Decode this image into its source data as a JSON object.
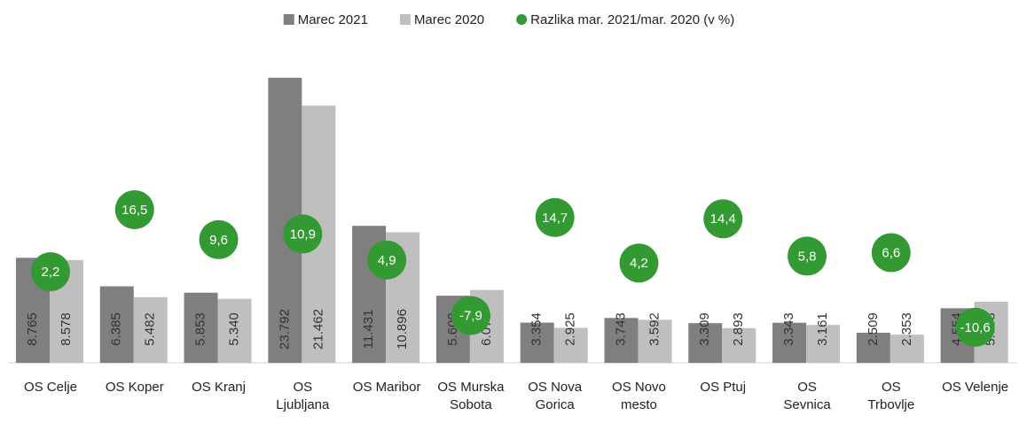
{
  "chart_data": {
    "type": "bar",
    "categories": [
      "OS Celje",
      "OS Koper",
      "OS Kranj",
      "OS\nLjubljana",
      "OS Maribor",
      "OS Murska\nSobota",
      "OS Nova\nGorica",
      "OS Novo\nmesto",
      "OS Ptuj",
      "OS\nSevnica",
      "OS\nTrbovlje",
      "OS Velenje"
    ],
    "series": [
      {
        "name": "Marec 2021",
        "color": "#7f7f7f",
        "values": [
          8765,
          6385,
          5853,
          23792,
          11431,
          5600,
          3354,
          3743,
          3309,
          3343,
          2509,
          4554
        ],
        "value_labels": [
          "8.765",
          "6.385",
          "5.853",
          "23.792",
          "11.431",
          "5.600",
          "3.354",
          "3.743",
          "3.309",
          "3.343",
          "2.509",
          "4.554"
        ]
      },
      {
        "name": "Marec 2020",
        "color": "#bfbfbf",
        "values": [
          8578,
          5482,
          5340,
          21462,
          10896,
          6078,
          2925,
          3592,
          2893,
          3161,
          2353,
          5093
        ],
        "value_labels": [
          "8.578",
          "5.482",
          "5.340",
          "21.462",
          "10.896",
          "6.078",
          "2.925",
          "3.592",
          "2.893",
          "3.161",
          "2.353",
          "5.093"
        ]
      },
      {
        "name": "Razlika mar. 2021/mar. 2020 (v %)",
        "color": "#339933",
        "axis": "y2",
        "values": [
          2.2,
          16.5,
          9.6,
          10.9,
          4.9,
          -7.9,
          14.7,
          4.2,
          14.4,
          5.8,
          6.6,
          -10.6
        ],
        "value_labels": [
          "2,2",
          "16,5",
          "9,6",
          "10,9",
          "4,9",
          "-7,9",
          "14,7",
          "4,2",
          "14,4",
          "5,8",
          "6,6",
          "-10,6"
        ]
      }
    ],
    "ylim": [
      0,
      24000
    ],
    "y2lim": [
      -18.8,
      47.5
    ],
    "legend": "top"
  }
}
